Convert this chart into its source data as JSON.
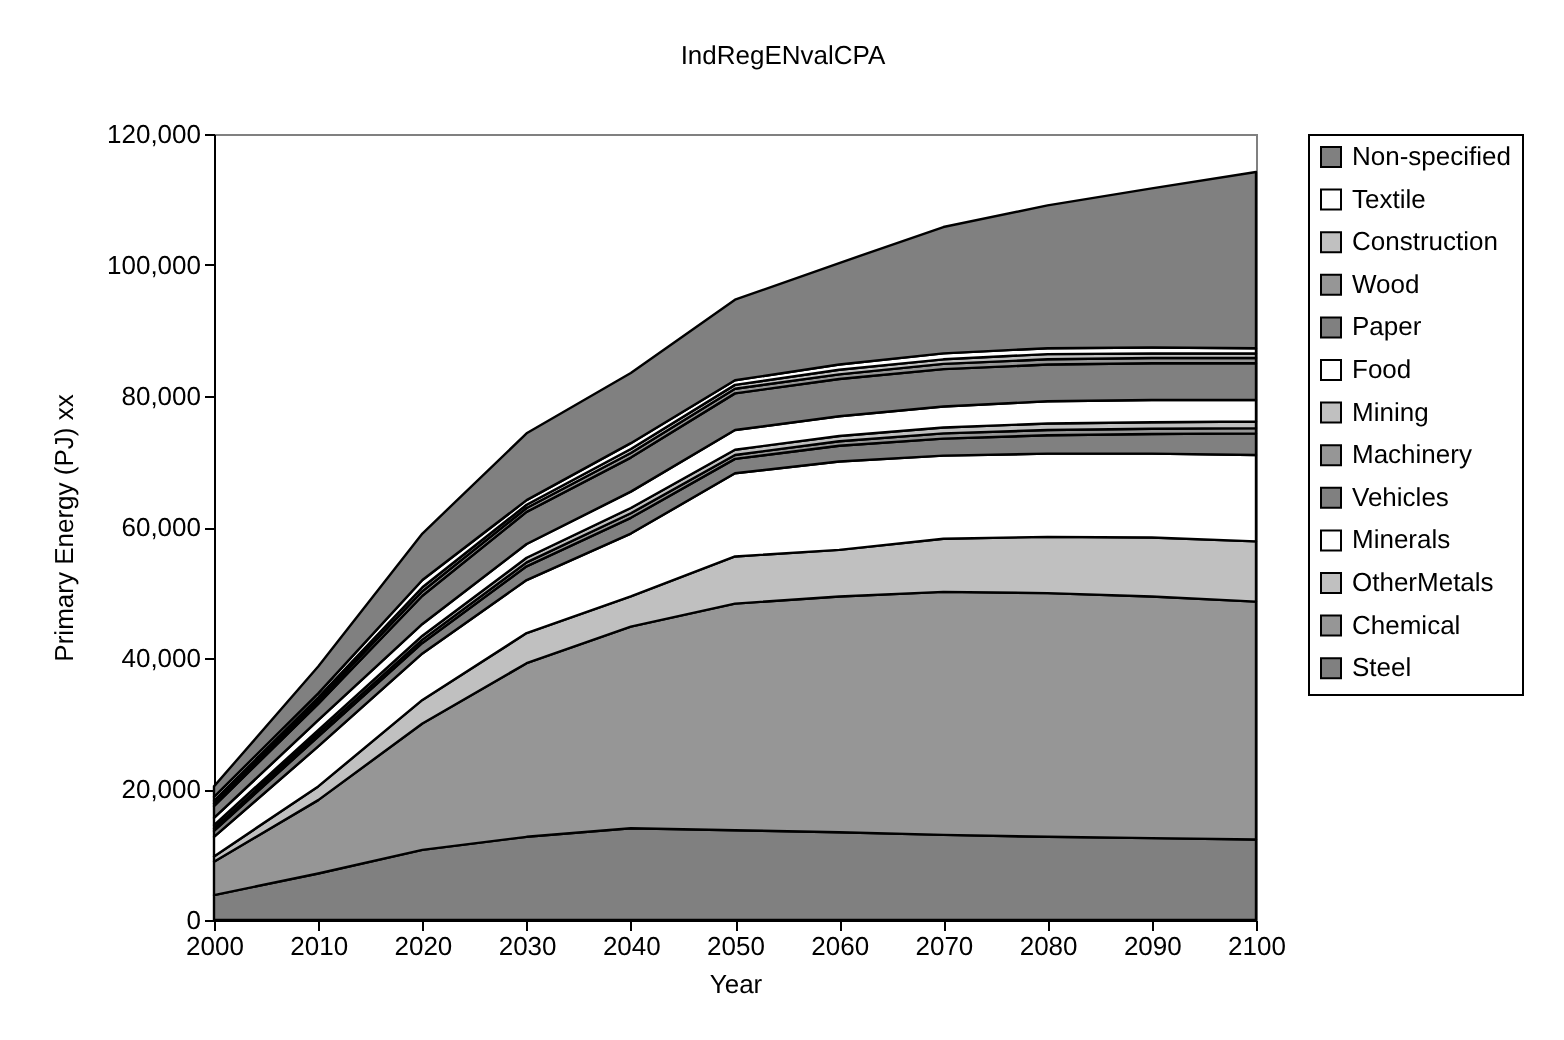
{
  "chart_data": {
    "type": "area",
    "stacked": true,
    "title": "IndRegENvalCPA",
    "xlabel": "Year",
    "ylabel": "Primary Energy (PJ)      xx",
    "x": [
      2000,
      2010,
      2020,
      2030,
      2040,
      2050,
      2060,
      2070,
      2080,
      2090,
      2100
    ],
    "xlim": [
      2000,
      2100
    ],
    "xticks": [
      2000,
      2010,
      2020,
      2030,
      2040,
      2050,
      2060,
      2070,
      2080,
      2090,
      2100
    ],
    "ylim": [
      0,
      120000
    ],
    "yticks": [
      0,
      {
        "value": 20000,
        "label": "20,000"
      },
      {
        "value": 40000,
        "label": "40,000"
      },
      {
        "value": 60000,
        "label": "60,000"
      },
      {
        "value": 80000,
        "label": "80,000"
      },
      {
        "value": 100000,
        "label": "100,000"
      },
      {
        "value": 120000,
        "label": "120,000"
      }
    ],
    "legend": "right",
    "series": [
      {
        "name": "Steel",
        "color": "#808080",
        "values": [
          3800,
          7100,
          10700,
          12700,
          14000,
          13700,
          13400,
          13000,
          12700,
          12500,
          12300
        ]
      },
      {
        "name": "Chemical",
        "color": "#969696",
        "values": [
          5100,
          11200,
          19300,
          26500,
          30800,
          34600,
          36000,
          37100,
          37200,
          36900,
          36300
        ]
      },
      {
        "name": "OtherMetals",
        "color": "#c0c0c0",
        "values": [
          800,
          2100,
          3600,
          4600,
          4600,
          7200,
          7100,
          8100,
          8600,
          9000,
          9200
        ]
      },
      {
        "name": "Minerals",
        "color": "#ffffff",
        "values": [
          3000,
          6100,
          7100,
          8100,
          9600,
          12700,
          13500,
          12700,
          12700,
          12800,
          13200
        ]
      },
      {
        "name": "Vehicles",
        "color": "#808080",
        "values": [
          900,
          1500,
          1600,
          2100,
          2400,
          2200,
          2400,
          2600,
          2800,
          3000,
          3300
        ]
      },
      {
        "name": "Machinery",
        "color": "#969696",
        "values": [
          400,
          500,
          500,
          600,
          700,
          600,
          700,
          800,
          800,
          800,
          800
        ]
      },
      {
        "name": "Mining",
        "color": "#c0c0c0",
        "values": [
          500,
          500,
          600,
          700,
          800,
          800,
          800,
          900,
          1000,
          1000,
          1000
        ]
      },
      {
        "name": "Food",
        "color": "#ffffff",
        "values": [
          1100,
          1500,
          1800,
          2100,
          2500,
          3000,
          3000,
          3200,
          3400,
          3400,
          3300
        ]
      },
      {
        "name": "Paper",
        "color": "#808080",
        "values": [
          1800,
          2500,
          4300,
          4900,
          5200,
          5600,
          5700,
          5700,
          5600,
          5600,
          5600
        ]
      },
      {
        "name": "Wood",
        "color": "#969696",
        "values": [
          400,
          500,
          700,
          600,
          700,
          700,
          700,
          800,
          800,
          800,
          800
        ]
      },
      {
        "name": "Construction",
        "color": "#c0c0c0",
        "values": [
          400,
          500,
          600,
          500,
          600,
          600,
          700,
          700,
          800,
          700,
          700
        ]
      },
      {
        "name": "Textile",
        "color": "#ffffff",
        "values": [
          600,
          600,
          1100,
          700,
          900,
          700,
          800,
          900,
          900,
          900,
          800
        ]
      },
      {
        "name": "Non-specified",
        "color": "#808080",
        "values": [
          1600,
          4100,
          7100,
          10200,
          10700,
          12300,
          15500,
          19300,
          21800,
          24300,
          26900
        ]
      }
    ]
  }
}
